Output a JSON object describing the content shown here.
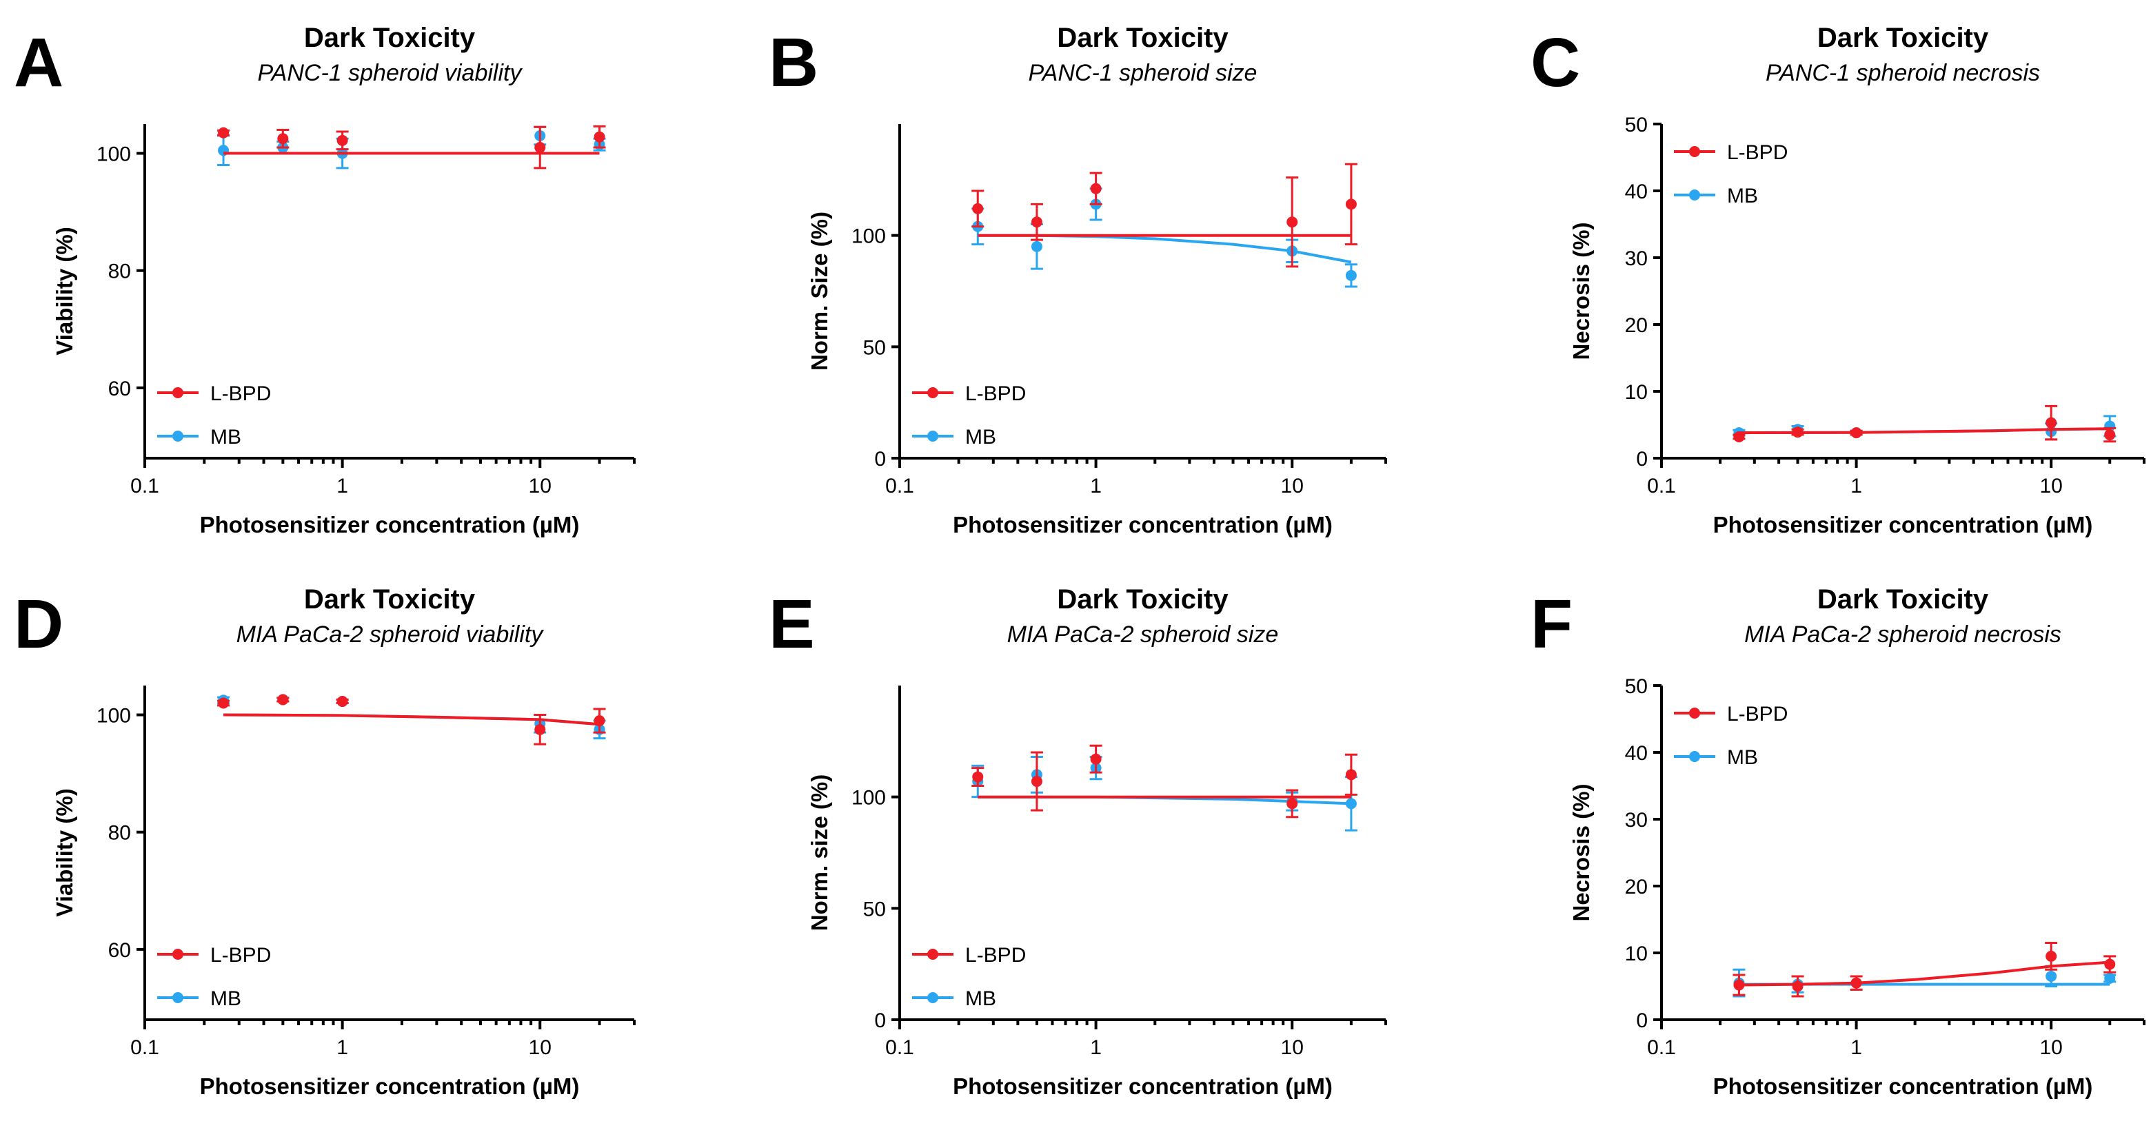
{
  "colors": {
    "lbpd": "#ee1c25",
    "mb": "#2aa6f0"
  },
  "chart_data": [
    {
      "panel": "A",
      "type": "scatter",
      "title": "Dark Toxicity",
      "subtitle": "PANC-1 spheroid viability",
      "xlabel": "Photosensitizer concentration (µM)",
      "ylabel": "Viability (%)",
      "xscale": "log",
      "xlim": [
        0.1,
        30
      ],
      "ylim": [
        48,
        105
      ],
      "xticks": [
        0.1,
        1,
        10
      ],
      "xtick_labels": [
        "0.1",
        "1",
        "10"
      ],
      "yticks": [
        60,
        80,
        100
      ],
      "ytick_labels": [
        "60",
        "80",
        "100"
      ],
      "legend": [
        "L-BPD",
        "MB"
      ],
      "legend_position": "bottom-left",
      "series": [
        {
          "name": "L-BPD",
          "color_key": "lbpd",
          "x": [
            0.25,
            0.5,
            1,
            10,
            20
          ],
          "y": [
            103.5,
            102.5,
            102.2,
            101.0,
            102.8
          ],
          "err": [
            0.4,
            1.5,
            1.5,
            3.5,
            1.8
          ],
          "fit_x": [
            0.25,
            20
          ],
          "fit_y": [
            100.0,
            100.0
          ]
        },
        {
          "name": "MB",
          "color_key": "mb",
          "x": [
            0.25,
            0.5,
            1,
            10,
            20
          ],
          "y": [
            100.5,
            101.0,
            100.0,
            103.0,
            101.5
          ],
          "err": [
            2.5,
            1.0,
            2.5,
            1.5,
            1.0
          ],
          "fit_x": [
            0.25,
            20
          ],
          "fit_y": [
            100.0,
            100.0
          ]
        }
      ]
    },
    {
      "panel": "B",
      "type": "scatter",
      "title": "Dark Toxicity",
      "subtitle": "PANC-1 spheroid size",
      "xlabel": "Photosensitizer concentration (µM)",
      "ylabel": "Norm. Size (%)",
      "xscale": "log",
      "xlim": [
        0.1,
        30
      ],
      "ylim": [
        0,
        150
      ],
      "xticks": [
        0.1,
        1,
        10
      ],
      "xtick_labels": [
        "0.1",
        "1",
        "10"
      ],
      "yticks": [
        0,
        50,
        100
      ],
      "ytick_labels": [
        "0",
        "50",
        "100"
      ],
      "legend": [
        "L-BPD",
        "MB"
      ],
      "legend_position": "bottom-left",
      "series": [
        {
          "name": "L-BPD",
          "color_key": "lbpd",
          "x": [
            0.25,
            0.5,
            1,
            10,
            20
          ],
          "y": [
            112,
            106,
            121,
            106,
            114
          ],
          "err": [
            8,
            8,
            7,
            20,
            18
          ],
          "fit_x": [
            0.25,
            20
          ],
          "fit_y": [
            100,
            100
          ]
        },
        {
          "name": "MB",
          "color_key": "mb",
          "x": [
            0.25,
            0.5,
            1,
            10,
            20
          ],
          "y": [
            104,
            95,
            114,
            93,
            82
          ],
          "err": [
            8,
            10,
            7,
            5,
            5
          ],
          "fit_x": [
            0.25,
            0.5,
            1,
            2,
            5,
            10,
            20
          ],
          "fit_y": [
            100,
            100,
            99.5,
            98.5,
            96,
            93,
            88
          ]
        }
      ]
    },
    {
      "panel": "C",
      "type": "scatter",
      "title": "Dark Toxicity",
      "subtitle": "PANC-1 spheroid necrosis",
      "xlabel": "Photosensitizer concentration (µM)",
      "ylabel": "Necrosis (%)",
      "xscale": "log",
      "xlim": [
        0.1,
        30
      ],
      "ylim": [
        0,
        50
      ],
      "xticks": [
        0.1,
        1,
        10
      ],
      "xtick_labels": [
        "0.1",
        "1",
        "10"
      ],
      "yticks": [
        0,
        10,
        20,
        30,
        40,
        50
      ],
      "ytick_labels": [
        "0",
        "10",
        "20",
        "30",
        "40",
        "50"
      ],
      "legend": [
        "L-BPD",
        "MB"
      ],
      "legend_position": "top-left",
      "series": [
        {
          "name": "L-BPD",
          "color_key": "lbpd",
          "x": [
            0.25,
            0.5,
            1,
            10,
            20
          ],
          "y": [
            3.2,
            3.9,
            3.8,
            5.3,
            3.5
          ],
          "err": [
            0.3,
            0.4,
            0.3,
            2.5,
            1.0
          ],
          "fit_x": [
            0.25,
            1,
            5,
            10,
            20
          ],
          "fit_y": [
            3.8,
            3.85,
            4.1,
            4.3,
            4.4
          ]
        },
        {
          "name": "MB",
          "color_key": "mb",
          "x": [
            0.25,
            0.5,
            1,
            10,
            20
          ],
          "y": [
            3.8,
            4.3,
            3.8,
            4.0,
            4.8
          ],
          "err": [
            0.4,
            0.5,
            0.3,
            1.2,
            1.5
          ],
          "fit_x": [
            0.25,
            1,
            5,
            10,
            20
          ],
          "fit_y": [
            3.8,
            3.85,
            4.1,
            4.3,
            4.4
          ]
        }
      ]
    },
    {
      "panel": "D",
      "type": "scatter",
      "title": "Dark Toxicity",
      "subtitle": "MIA PaCa-2 spheroid viability",
      "xlabel": "Photosensitizer concentration (µM)",
      "ylabel": "Viability (%)",
      "xscale": "log",
      "xlim": [
        0.1,
        30
      ],
      "ylim": [
        48,
        105
      ],
      "xticks": [
        0.1,
        1,
        10
      ],
      "xtick_labels": [
        "0.1",
        "1",
        "10"
      ],
      "yticks": [
        60,
        80,
        100
      ],
      "ytick_labels": [
        "60",
        "80",
        "100"
      ],
      "legend": [
        "L-BPD",
        "MB"
      ],
      "legend_position": "bottom-left",
      "series": [
        {
          "name": "L-BPD",
          "color_key": "lbpd",
          "x": [
            0.25,
            0.5,
            1,
            10,
            20
          ],
          "y": [
            102.0,
            102.6,
            102.3,
            97.5,
            99.0
          ],
          "err": [
            0.4,
            0.3,
            0.3,
            2.5,
            2.0
          ],
          "fit_x": [
            0.25,
            1,
            3,
            10,
            20
          ],
          "fit_y": [
            100.0,
            99.9,
            99.6,
            99.2,
            98.4
          ]
        },
        {
          "name": "MB",
          "color_key": "mb",
          "x": [
            0.25,
            0.5,
            1,
            10,
            20
          ],
          "y": [
            102.5,
            102.6,
            102.3,
            98.5,
            97.5
          ],
          "err": [
            0.5,
            0.3,
            0.3,
            1.5,
            1.5
          ],
          "fit_x": [
            0.25,
            1,
            3,
            10,
            20
          ],
          "fit_y": [
            100.0,
            99.9,
            99.6,
            99.2,
            98.4
          ]
        }
      ]
    },
    {
      "panel": "E",
      "type": "scatter",
      "title": "Dark Toxicity",
      "subtitle": "MIA PaCa-2 spheroid size",
      "xlabel": "Photosensitizer concentration (µM)",
      "ylabel": "Norm. size (%)",
      "xscale": "log",
      "xlim": [
        0.1,
        30
      ],
      "ylim": [
        0,
        150
      ],
      "xticks": [
        0.1,
        1,
        10
      ],
      "xtick_labels": [
        "0.1",
        "1",
        "10"
      ],
      "yticks": [
        0,
        50,
        100
      ],
      "ytick_labels": [
        "0",
        "50",
        "100"
      ],
      "legend": [
        "L-BPD",
        "MB"
      ],
      "legend_position": "bottom-left",
      "series": [
        {
          "name": "L-BPD",
          "color_key": "lbpd",
          "x": [
            0.25,
            0.5,
            1,
            10,
            20
          ],
          "y": [
            109,
            107,
            117,
            97,
            110
          ],
          "err": [
            4,
            13,
            6,
            6,
            9
          ],
          "fit_x": [
            0.25,
            20
          ],
          "fit_y": [
            100,
            100
          ]
        },
        {
          "name": "MB",
          "color_key": "mb",
          "x": [
            0.25,
            0.5,
            1,
            10,
            20
          ],
          "y": [
            107,
            110,
            113,
            98,
            97
          ],
          "err": [
            7,
            8,
            5,
            4,
            12
          ],
          "fit_x": [
            0.25,
            1,
            5,
            10,
            20
          ],
          "fit_y": [
            100,
            100,
            99,
            98,
            97
          ]
        }
      ]
    },
    {
      "panel": "F",
      "type": "scatter",
      "title": "Dark Toxicity",
      "subtitle": "MIA PaCa-2 spheroid necrosis",
      "xlabel": "Photosensitizer concentration (µM)",
      "ylabel": "Necrosis (%)",
      "xscale": "log",
      "xlim": [
        0.1,
        30
      ],
      "ylim": [
        0,
        50
      ],
      "xticks": [
        0.1,
        1,
        10
      ],
      "xtick_labels": [
        "0.1",
        "1",
        "10"
      ],
      "yticks": [
        0,
        10,
        20,
        30,
        40,
        50
      ],
      "ytick_labels": [
        "0",
        "10",
        "20",
        "30",
        "40",
        "50"
      ],
      "legend": [
        "L-BPD",
        "MB"
      ],
      "legend_position": "top-left",
      "series": [
        {
          "name": "L-BPD",
          "color_key": "lbpd",
          "x": [
            0.25,
            0.5,
            1,
            10,
            20
          ],
          "y": [
            5.2,
            5.0,
            5.5,
            9.5,
            8.3
          ],
          "err": [
            1.5,
            1.5,
            1.0,
            2.0,
            1.2
          ],
          "fit_x": [
            0.25,
            0.5,
            1,
            2,
            5,
            10,
            20
          ],
          "fit_y": [
            5.2,
            5.3,
            5.5,
            6.0,
            7.0,
            8.0,
            8.6
          ]
        },
        {
          "name": "MB",
          "color_key": "mb",
          "x": [
            0.25,
            0.5,
            1,
            10,
            20
          ],
          "y": [
            5.5,
            5.3,
            5.5,
            6.5,
            6.2
          ],
          "err": [
            2.0,
            1.2,
            1.0,
            1.5,
            0.5
          ],
          "fit_x": [
            0.25,
            20
          ],
          "fit_y": [
            5.3,
            5.3
          ]
        }
      ]
    }
  ]
}
